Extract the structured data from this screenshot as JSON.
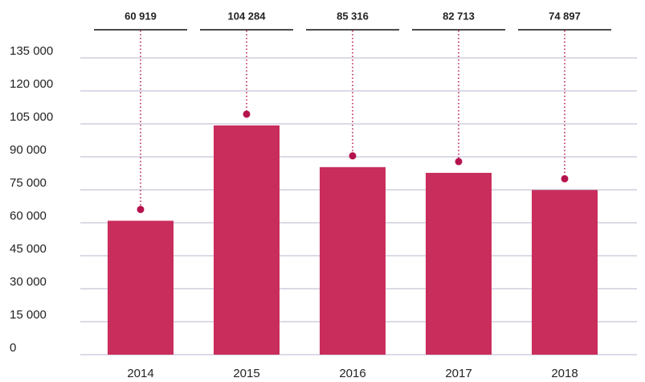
{
  "chart_data": {
    "type": "bar",
    "categories": [
      "2014",
      "2015",
      "2016",
      "2017",
      "2018"
    ],
    "values": [
      60919,
      104284,
      85316,
      82713,
      74897
    ],
    "value_labels": [
      "60 919",
      "104 284",
      "85 316",
      "82 713",
      "74 897"
    ],
    "color": "#c92d5c",
    "ylim": [
      0,
      135000
    ],
    "yticks": [
      {
        "value": 0,
        "label": "0"
      },
      {
        "value": 15000,
        "label": "15 000"
      },
      {
        "value": 30000,
        "label": "30 000"
      },
      {
        "value": 45000,
        "label": "45 000"
      },
      {
        "value": 60000,
        "label": "60 000"
      },
      {
        "value": 75000,
        "label": "75 000"
      },
      {
        "value": 90000,
        "label": "90 000"
      },
      {
        "value": 105000,
        "label": "105 000"
      },
      {
        "value": 120000,
        "label": "120 000"
      },
      {
        "value": 135000,
        "label": "135 000"
      }
    ],
    "grid": true
  }
}
